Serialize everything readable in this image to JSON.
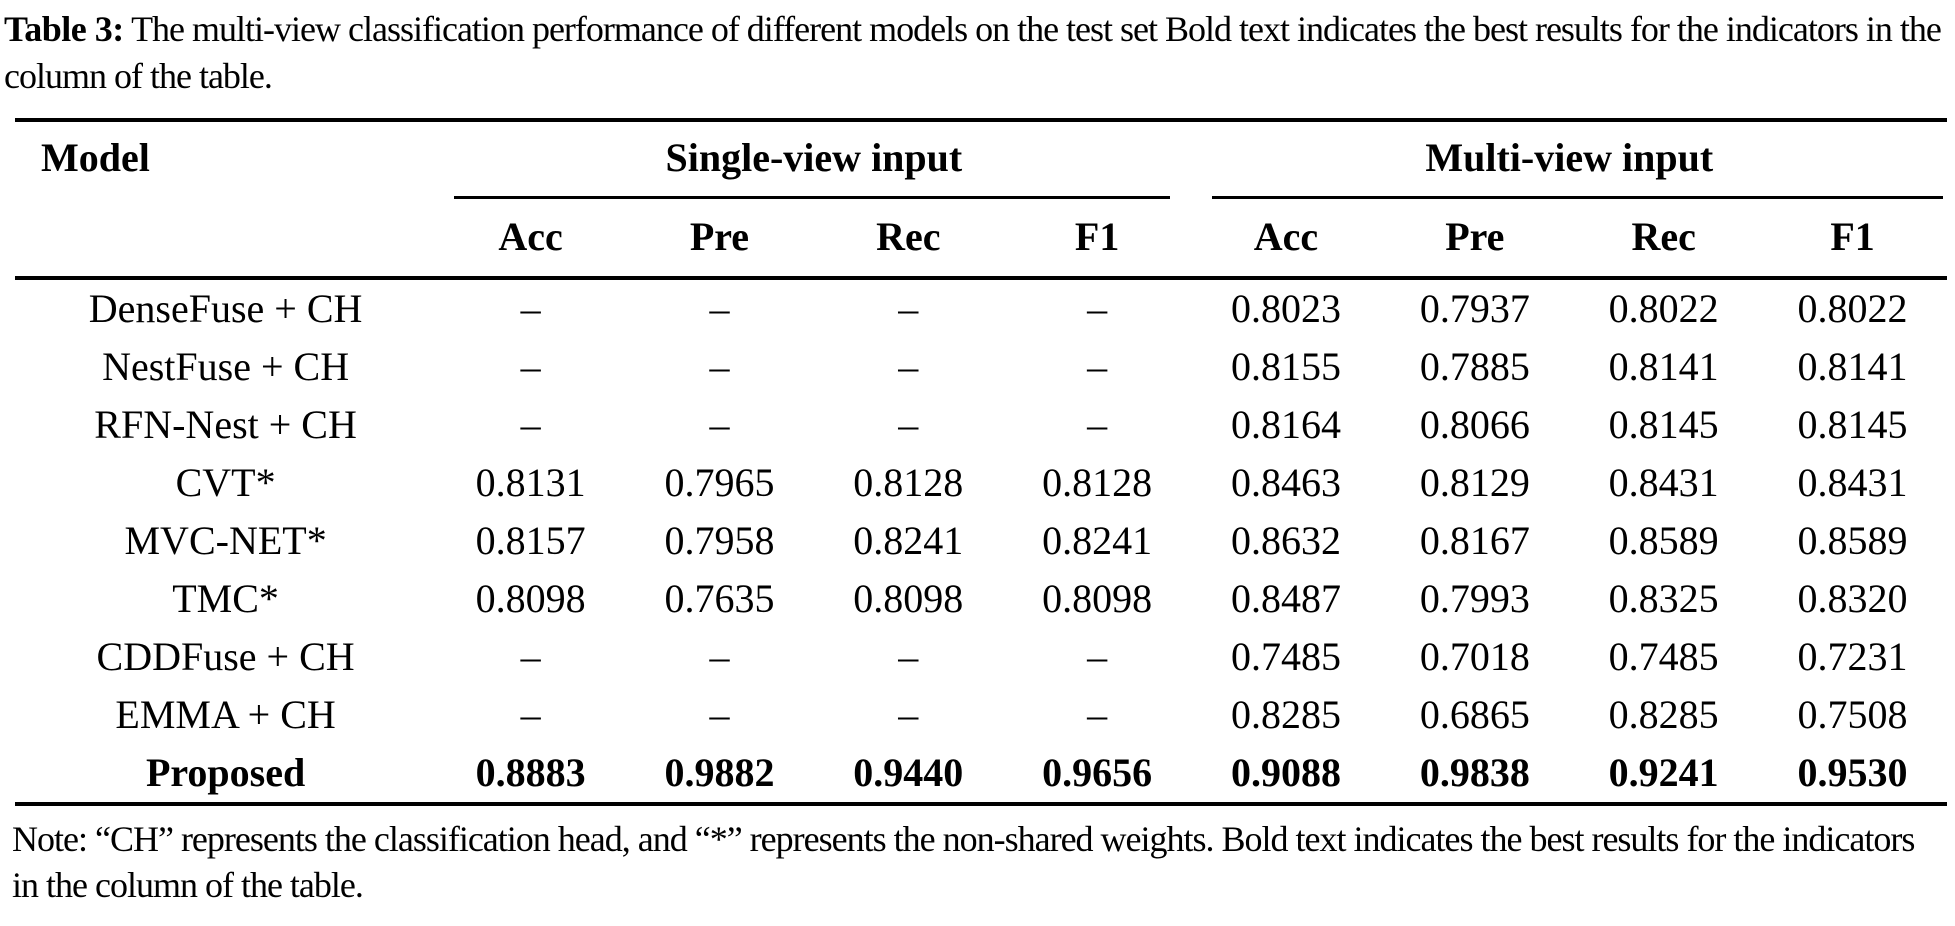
{
  "caption": {
    "label": "Table 3:",
    "text": "The multi-view classification performance of different models on the test set Bold text indicates the best results for the indicators in the column of the table."
  },
  "table": {
    "model_header": "Model",
    "groups": [
      {
        "label": "Single-view input",
        "columns": [
          "Acc",
          "Pre",
          "Rec",
          "F1"
        ]
      },
      {
        "label": "Multi-view input",
        "columns": [
          "Acc",
          "Pre",
          "Rec",
          "F1"
        ]
      }
    ],
    "rows": [
      {
        "model": "DenseFuse + CH",
        "bold": false,
        "values": [
          "–",
          "–",
          "–",
          "–",
          "0.8023",
          "0.7937",
          "0.8022",
          "0.8022"
        ]
      },
      {
        "model": "NestFuse + CH",
        "bold": false,
        "values": [
          "–",
          "–",
          "–",
          "–",
          "0.8155",
          "0.7885",
          "0.8141",
          "0.8141"
        ]
      },
      {
        "model": "RFN-Nest + CH",
        "bold": false,
        "values": [
          "–",
          "–",
          "–",
          "–",
          "0.8164",
          "0.8066",
          "0.8145",
          "0.8145"
        ]
      },
      {
        "model": "CVT*",
        "bold": false,
        "values": [
          "0.8131",
          "0.7965",
          "0.8128",
          "0.8128",
          "0.8463",
          "0.8129",
          "0.8431",
          "0.8431"
        ]
      },
      {
        "model": "MVC-NET*",
        "bold": false,
        "values": [
          "0.8157",
          "0.7958",
          "0.8241",
          "0.8241",
          "0.8632",
          "0.8167",
          "0.8589",
          "0.8589"
        ]
      },
      {
        "model": "TMC*",
        "bold": false,
        "values": [
          "0.8098",
          "0.7635",
          "0.8098",
          "0.8098",
          "0.8487",
          "0.7993",
          "0.8325",
          "0.8320"
        ]
      },
      {
        "model": "CDDFuse + CH",
        "bold": false,
        "values": [
          "–",
          "–",
          "–",
          "–",
          "0.7485",
          "0.7018",
          "0.7485",
          "0.7231"
        ]
      },
      {
        "model": "EMMA + CH",
        "bold": false,
        "values": [
          "–",
          "–",
          "–",
          "–",
          "0.8285",
          "0.6865",
          "0.8285",
          "0.7508"
        ]
      },
      {
        "model": "Proposed",
        "bold": true,
        "values": [
          "0.8883",
          "0.9882",
          "0.9440",
          "0.9656",
          "0.9088",
          "0.9838",
          "0.9241",
          "0.9530"
        ]
      }
    ],
    "note": "Note: “CH” represents the classification head, and “*” represents the non-shared weights. Bold text indicates the best results for the indicators in the column of the table."
  },
  "colors": {
    "text": "#000000",
    "background": "#ffffff",
    "rule": "#000000"
  }
}
